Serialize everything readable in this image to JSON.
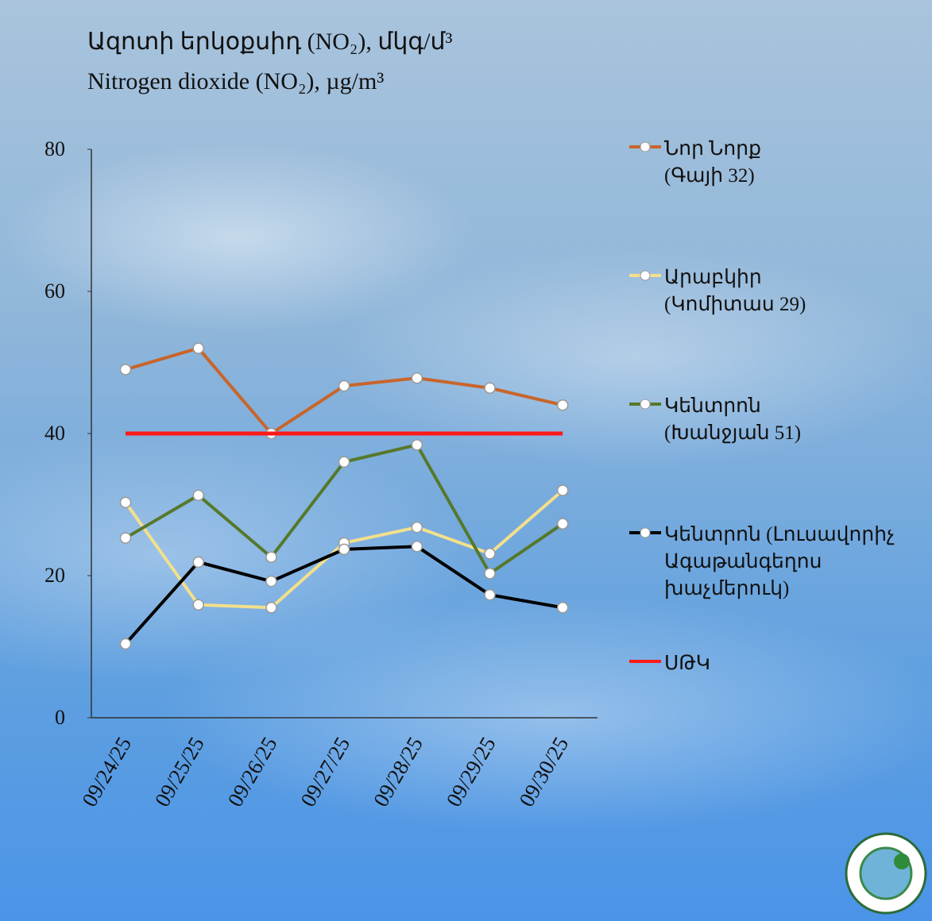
{
  "chart_data": {
    "type": "line",
    "title": "Ազոտի  երկօքսիդ (NO₂), մկգ/մ³",
    "subtitle": "Nitrogen  dioxide (NO₂), µg/m³",
    "categories": [
      "09/24/25",
      "09/25/25",
      "09/26/25",
      "09/27/25",
      "09/28/25",
      "09/29/25",
      "09/30/25"
    ],
    "ylim": [
      0,
      80
    ],
    "yticks": [
      0,
      20,
      40,
      60,
      80
    ],
    "series": [
      {
        "name": "Նոր Նորք\n(Գայի 32)",
        "color": "#c8652a",
        "markers": true,
        "values": [
          49,
          52,
          40,
          46.7,
          47.8,
          46.4,
          44
        ]
      },
      {
        "name": "Արաբկիր\n(Կոմիտաս 29)",
        "color": "#f3df8c",
        "markers": true,
        "values": [
          30.3,
          15.9,
          15.5,
          24.6,
          26.8,
          23.1,
          32
        ]
      },
      {
        "name": "Կենտրոն\n(Խանջյան 51)",
        "color": "#56782a",
        "markers": true,
        "values": [
          25.3,
          31.3,
          22.6,
          36,
          38.4,
          20.3,
          27.3
        ]
      },
      {
        "name": "Կենտրոն (Լուսավորիչ\nԱգաթանգեղոս\nխաչմերուկ)",
        "color": "#000000",
        "markers": true,
        "values": [
          10.4,
          21.9,
          19.2,
          23.7,
          24.1,
          17.3,
          15.5
        ]
      },
      {
        "name": "ՍԹԿ",
        "color": "#ff1a1a",
        "markers": false,
        "values": [
          40,
          40,
          40,
          40,
          40,
          40,
          40
        ]
      }
    ]
  }
}
